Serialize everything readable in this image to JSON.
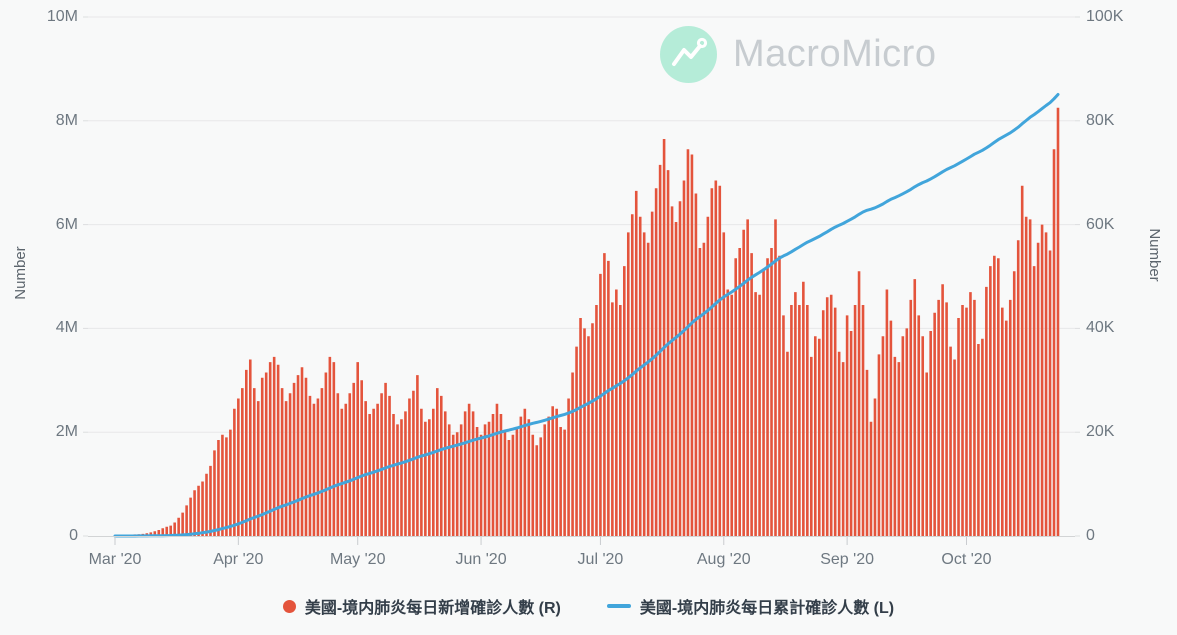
{
  "brand": {
    "name": "MacroMicro"
  },
  "y_left": {
    "title": "Number",
    "ticks": [
      "0",
      "2M",
      "4M",
      "6M",
      "8M",
      "10M"
    ]
  },
  "y_right": {
    "title": "Number",
    "ticks": [
      "0",
      "20K",
      "40K",
      "60K",
      "80K",
      "100K"
    ]
  },
  "x_axis": {
    "ticks": [
      "Mar '20",
      "Apr '20",
      "May '20",
      "Jun '20",
      "Jul '20",
      "Aug '20",
      "Sep '20",
      "Oct '20"
    ]
  },
  "legend": {
    "items": [
      {
        "label": "美國-境内肺炎每日新增確診人數 (R)",
        "marker": "circle",
        "color": "#e4543c"
      },
      {
        "label": "美國-境内肺炎每日累計確診人數 (L)",
        "marker": "line",
        "color": "#41a5db"
      }
    ]
  },
  "chart_data": {
    "type": "bar+line combo",
    "title": "",
    "x_start_date": "2020-03-01",
    "x_end_date": "2020-10-24",
    "x_tick_labels": [
      "Mar '20",
      "Apr '20",
      "May '20",
      "Jun '20",
      "Jul '20",
      "Aug '20",
      "Sep '20",
      "Oct '20"
    ],
    "x_tick_day_offsets": [
      0,
      31,
      61,
      92,
      122,
      153,
      184,
      214
    ],
    "left_axis": {
      "label": "Number",
      "range": [
        0,
        10000000
      ],
      "tick_step": 2000000,
      "applies_to": "cumulative line"
    },
    "right_axis": {
      "label": "Number",
      "range": [
        0,
        100000
      ],
      "tick_step": 20000,
      "applies_to": "daily new-cases bars"
    },
    "grid": "horizontal",
    "legend_position": "bottom-center",
    "series": [
      {
        "name": "美國-境内肺炎每日新增確診人數 (R)",
        "type": "bar",
        "axis": "right",
        "color": "#e4543c",
        "values_unit": "thousand cases per day",
        "values": [
          0.07,
          0.08,
          0.12,
          0.15,
          0.22,
          0.3,
          0.35,
          0.4,
          0.52,
          0.7,
          0.9,
          1.15,
          1.5,
          1.8,
          2.0,
          2.6,
          3.5,
          4.5,
          5.9,
          7.4,
          8.8,
          9.7,
          10.5,
          12.0,
          13.5,
          16.5,
          18.5,
          19.5,
          19.0,
          20.5,
          24.5,
          26.5,
          28.5,
          32.0,
          34.0,
          28.5,
          26.0,
          30.5,
          31.5,
          33.5,
          34.5,
          33.0,
          28.5,
          26.0,
          27.5,
          29.5,
          31.0,
          32.5,
          30.5,
          27.0,
          25.5,
          26.5,
          28.5,
          31.5,
          34.5,
          33.5,
          27.5,
          24.5,
          25.5,
          27.5,
          29.5,
          33.5,
          30.0,
          26.0,
          23.5,
          24.5,
          25.5,
          27.5,
          29.5,
          27.0,
          23.5,
          21.5,
          22.5,
          24.0,
          26.5,
          28.0,
          31.0,
          24.5,
          22.0,
          22.5,
          24.5,
          28.5,
          27.0,
          24.0,
          21.5,
          19.5,
          20.0,
          21.5,
          24.0,
          25.5,
          24.0,
          21.0,
          19.5,
          21.5,
          22.0,
          23.5,
          25.5,
          23.5,
          20.0,
          18.5,
          19.5,
          21.0,
          23.0,
          24.5,
          22.5,
          19.5,
          17.5,
          19.0,
          21.5,
          23.0,
          25.0,
          24.5,
          21.0,
          20.5,
          26.5,
          31.5,
          36.5,
          42.0,
          40.0,
          38.5,
          41.0,
          44.5,
          50.5,
          54.5,
          53.0,
          45.0,
          47.5,
          44.5,
          52.0,
          58.5,
          62.0,
          66.5,
          61.5,
          58.5,
          56.5,
          62.5,
          67.0,
          71.5,
          76.5,
          70.5,
          63.5,
          60.5,
          64.5,
          68.5,
          74.5,
          73.5,
          66.0,
          55.5,
          56.5,
          61.5,
          67.0,
          68.5,
          67.5,
          58.5,
          47.5,
          46.5,
          53.5,
          55.5,
          59.0,
          61.0,
          54.5,
          47.0,
          46.5,
          51.5,
          53.5,
          55.5,
          61.0,
          54.0,
          42.5,
          35.5,
          44.5,
          47.0,
          44.5,
          49.0,
          44.5,
          34.5,
          38.5,
          38.0,
          43.5,
          46.0,
          46.5,
          44.0,
          35.5,
          33.5,
          42.5,
          39.5,
          44.5,
          51.0,
          44.5,
          32.0,
          22.0,
          26.5,
          35.0,
          38.5,
          47.5,
          41.5,
          34.5,
          33.5,
          38.5,
          40.0,
          45.5,
          49.5,
          42.5,
          38.5,
          31.5,
          39.5,
          43.0,
          45.5,
          48.5,
          45.0,
          36.5,
          34.0,
          42.0,
          44.5,
          44.0,
          47.0,
          45.5,
          37.0,
          38.0,
          48.0,
          52.0,
          54.0,
          53.5,
          44.0,
          41.5,
          45.5,
          51.0,
          57.0,
          67.5,
          61.5,
          61.0,
          52.0,
          56.5,
          60.0,
          58.5,
          55.0,
          74.5,
          82.5
        ]
      },
      {
        "name": "美國-境内肺炎每日累計確診人數 (L)",
        "type": "line",
        "axis": "left",
        "color": "#41a5db",
        "derivation": "cumulative sum of the daily new-cases series",
        "values_unit": "cases (millions on left axis)",
        "checkpoints_millions": {
          "Apr 1": 0.21,
          "May 1": 1.09,
          "Jun 1": 1.87,
          "Jul 1": 2.64,
          "Aug 1": 4.55,
          "Sep 1": 6.02,
          "Oct 1": 7.22,
          "Oct 24": 8.51
        }
      }
    ]
  }
}
